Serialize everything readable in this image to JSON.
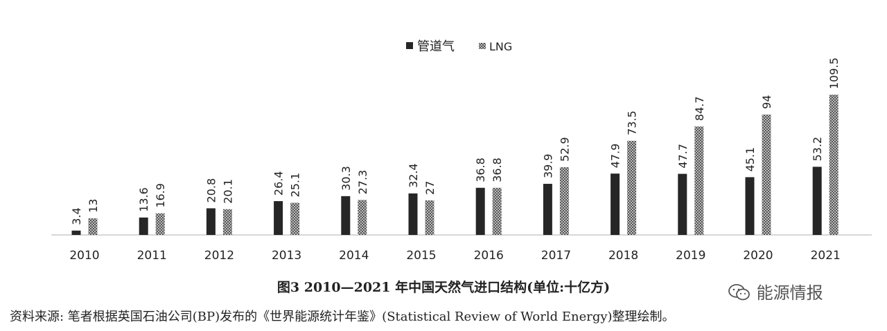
{
  "chart_data": {
    "type": "bar",
    "categories": [
      "2010",
      "2011",
      "2012",
      "2013",
      "2014",
      "2015",
      "2016",
      "2017",
      "2018",
      "2019",
      "2020",
      "2021"
    ],
    "series": [
      {
        "name": "管道气",
        "values": [
          3.4,
          13.6,
          20.8,
          26.4,
          30.3,
          32.4,
          36.8,
          39.9,
          47.9,
          47.7,
          45.1,
          53.2
        ],
        "color": "#262626"
      },
      {
        "name": "LNG",
        "values": [
          13,
          16.9,
          20.1,
          25.1,
          27.3,
          27,
          36.8,
          52.9,
          73.5,
          84.7,
          94,
          109.5
        ],
        "color": "#8a8a8a"
      }
    ],
    "legend_position": "top-center",
    "grid": false,
    "ylim": [
      0,
      109.5
    ]
  },
  "caption": "图3   2010—2021 年中国天然气进口结构(单位:十亿方)",
  "source": "资料来源: 笔者根据英国石油公司(BP)发布的《世界能源统计年鉴》(Statistical Review of World Energy)整理绘制。",
  "watermark": "能源情报"
}
